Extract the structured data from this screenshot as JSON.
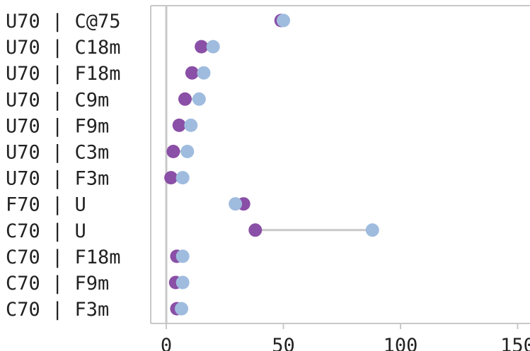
{
  "chart_data": {
    "type": "dumbbell",
    "categories": [
      "U70 | C@75",
      "U70 | C18m",
      "U70 | F18m",
      "U70 | C9m",
      "U70 | F9m",
      "U70 | C3m",
      "U70 | F3m",
      "F70 | U",
      "C70 | U",
      "C70 | F18m",
      "C70 | F9m",
      "C70 | F3m"
    ],
    "series": [
      {
        "values": [
          49,
          15,
          11,
          8,
          5.5,
          3,
          2,
          33,
          38,
          4.5,
          4,
          4.5
        ]
      },
      {
        "values": [
          50,
          20,
          16,
          14,
          10.5,
          9,
          7,
          29.5,
          88,
          7,
          7,
          6.5
        ]
      }
    ],
    "xlim": [
      -7,
      155
    ],
    "xticks": [
      0,
      50,
      100,
      150
    ],
    "grid": false,
    "colors": {
      "series1": "#8a4fa6",
      "series2": "#9fbcdf",
      "connector": "#c8c8c8",
      "axis": "#c8c8c8"
    }
  }
}
